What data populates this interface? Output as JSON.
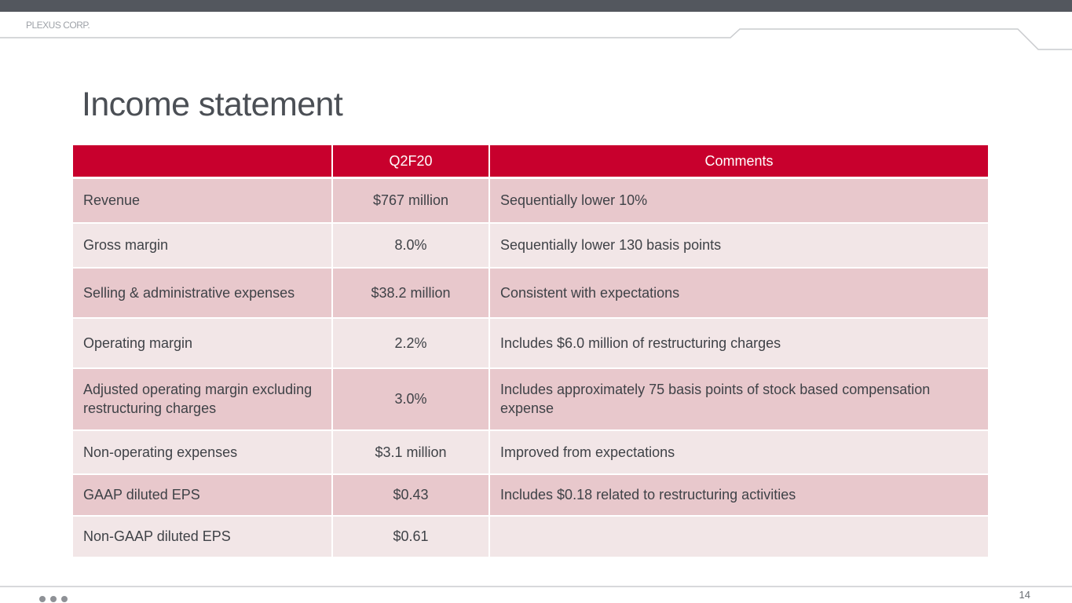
{
  "header": {
    "brand": "PLEXUS CORP."
  },
  "title": "Income statement",
  "table": {
    "columns": [
      "",
      "Q2F20",
      "Comments"
    ],
    "rows": [
      {
        "label": "Revenue",
        "value": "$767 million",
        "comment": "Sequentially lower 10%"
      },
      {
        "label": "Gross margin",
        "value": "8.0%",
        "comment": "Sequentially lower 130 basis points"
      },
      {
        "label": "Selling & administrative expenses",
        "value": "$38.2 million",
        "comment": "Consistent with expectations"
      },
      {
        "label": "Operating margin",
        "value": "2.2%",
        "comment": "Includes $6.0 million of restructuring charges"
      },
      {
        "label": "Adjusted operating margin excluding restructuring charges",
        "value": "3.0%",
        "comment": "Includes approximately 75 basis points of stock based compensation expense"
      },
      {
        "label": "Non-operating expenses",
        "value": "$3.1 million",
        "comment": "Improved from expectations"
      },
      {
        "label": "GAAP diluted EPS",
        "value": "$0.43",
        "comment": "Includes $0.18 related to restructuring activities"
      },
      {
        "label": "Non-GAAP diluted EPS",
        "value": "$0.61",
        "comment": ""
      }
    ]
  },
  "footer": {
    "page_number": "14"
  },
  "colors": {
    "header_red": "#c8002d",
    "row_dark": "#e8c8cc",
    "row_light": "#f2e6e7",
    "top_bar": "#53575e"
  }
}
